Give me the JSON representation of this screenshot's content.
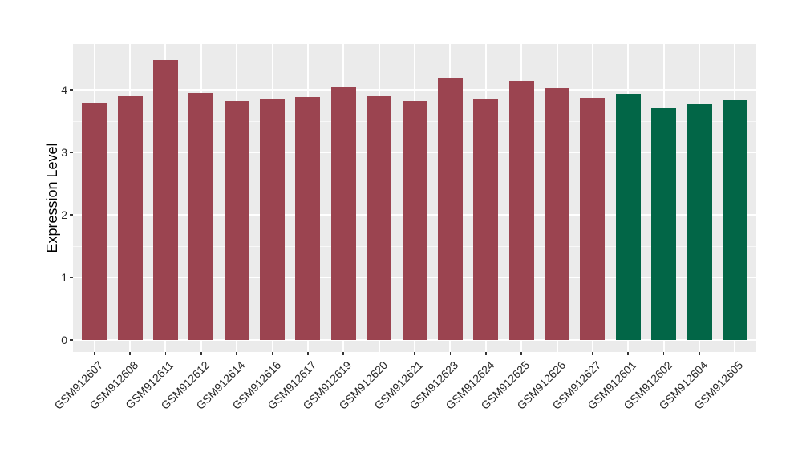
{
  "chart_data": {
    "type": "bar",
    "title": "",
    "xlabel": "",
    "ylabel": "Expression Level",
    "categories": [
      "GSM912607",
      "GSM912608",
      "GSM912611",
      "GSM912612",
      "GSM912614",
      "GSM912616",
      "GSM912617",
      "GSM912619",
      "GSM912620",
      "GSM912621",
      "GSM912623",
      "GSM912624",
      "GSM912625",
      "GSM912626",
      "GSM912627",
      "GSM912601",
      "GSM912602",
      "GSM912604",
      "GSM912605"
    ],
    "values": [
      3.8,
      3.9,
      4.47,
      3.95,
      3.82,
      3.86,
      3.89,
      4.04,
      3.9,
      3.82,
      4.19,
      3.86,
      4.14,
      4.03,
      3.87,
      3.94,
      3.7,
      3.77,
      3.83
    ],
    "group_index": [
      0,
      0,
      0,
      0,
      0,
      0,
      0,
      0,
      0,
      0,
      0,
      0,
      0,
      0,
      0,
      1,
      1,
      1,
      1
    ],
    "group_colors": [
      "#9B4450",
      "#026647"
    ],
    "yticks": [
      0,
      1,
      2,
      3,
      4
    ],
    "ylim": [
      -0.19,
      4.73
    ],
    "legend": "none",
    "grid": {
      "horizontal_major": true,
      "horizontal_minor": true,
      "vertical_major_per_category": true
    },
    "panel_background": "#EBEBEB",
    "grid_color": "#FFFFFF",
    "tick_color": "#333333",
    "axis_text_color": "#262626"
  }
}
